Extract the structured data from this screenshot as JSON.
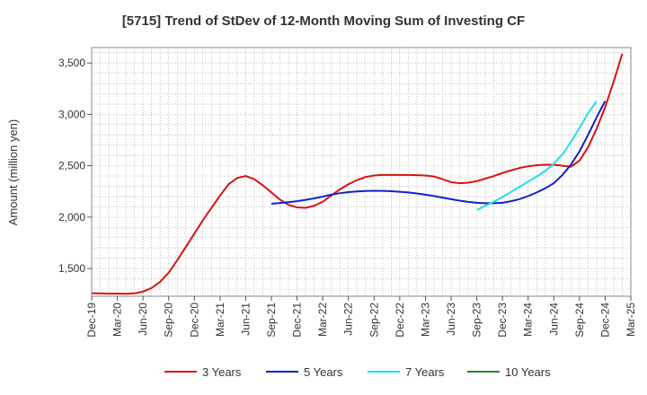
{
  "chart_data": {
    "type": "line",
    "title": "[5715]  Trend of StDev of 12-Month Moving Sum of Investing CF",
    "ylabel": "Amount (million yen)",
    "xlabel": "",
    "x_tick_labels": [
      "Dec-19",
      "Mar-20",
      "Jun-20",
      "Sep-20",
      "Dec-20",
      "Mar-21",
      "Jun-21",
      "Sep-21",
      "Dec-21",
      "Mar-22",
      "Jun-22",
      "Sep-22",
      "Dec-22",
      "Mar-23",
      "Jun-23",
      "Sep-23",
      "Dec-23",
      "Mar-24",
      "Jun-24",
      "Sep-24",
      "Dec-24",
      "Mar-25"
    ],
    "y_ticks": [
      1500,
      2000,
      2500,
      3000,
      3500
    ],
    "y_tick_labels": [
      "1,500",
      "2,000",
      "2,500",
      "3,000",
      "3,500"
    ],
    "ylim": [
      1230,
      3650
    ],
    "x_months_range": [
      "Dec-19",
      "Mar-25"
    ],
    "grid": true,
    "legend_position": "bottom",
    "series": [
      {
        "name": "3 Years",
        "color": "#dd1111",
        "start": "Dec-19",
        "values": [
          1260,
          1258,
          1255,
          1256,
          1254,
          1258,
          1275,
          1310,
          1370,
          1460,
          1580,
          1710,
          1840,
          1970,
          2090,
          2210,
          2320,
          2380,
          2400,
          2370,
          2310,
          2240,
          2170,
          2120,
          2095,
          2090,
          2110,
          2150,
          2210,
          2270,
          2320,
          2360,
          2390,
          2405,
          2410,
          2412,
          2410,
          2410,
          2408,
          2405,
          2395,
          2370,
          2340,
          2330,
          2335,
          2350,
          2375,
          2400,
          2430,
          2455,
          2478,
          2495,
          2505,
          2510,
          2510,
          2500,
          2490,
          2550,
          2680,
          2860,
          3070,
          3320,
          3590
        ]
      },
      {
        "name": "5 Years",
        "color": "#1122cc",
        "start": "Sep-21",
        "values": [
          2130,
          2138,
          2145,
          2155,
          2168,
          2182,
          2200,
          2218,
          2233,
          2243,
          2250,
          2254,
          2256,
          2255,
          2252,
          2247,
          2240,
          2230,
          2218,
          2205,
          2190,
          2175,
          2160,
          2148,
          2140,
          2135,
          2135,
          2140,
          2155,
          2175,
          2205,
          2240,
          2280,
          2330,
          2410,
          2510,
          2640,
          2800,
          2970,
          3130
        ]
      },
      {
        "name": "7 Years",
        "color": "#22ddee",
        "start": "Sep-23",
        "values": [
          2070,
          2110,
          2150,
          2195,
          2245,
          2295,
          2345,
          2395,
          2450,
          2520,
          2610,
          2730,
          2870,
          3010,
          3130
        ]
      },
      {
        "name": "10 Years",
        "color": "#228822",
        "start": "Sep-24",
        "values": []
      }
    ]
  }
}
